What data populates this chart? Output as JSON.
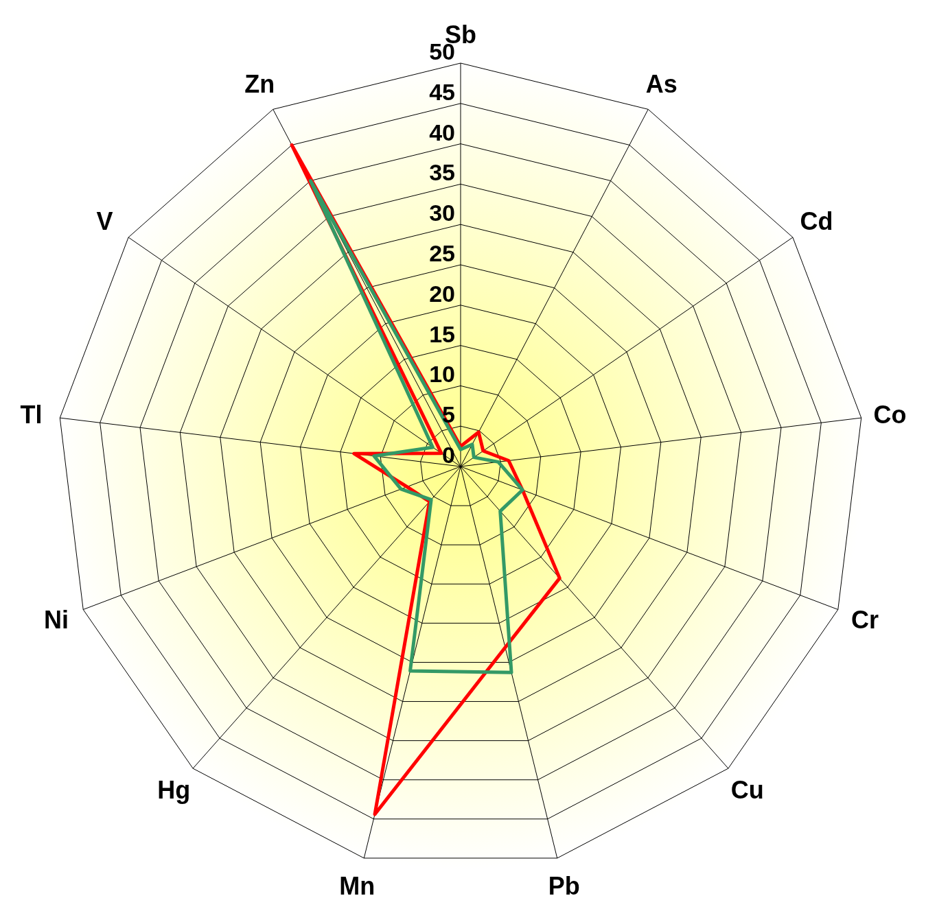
{
  "chart_data": {
    "type": "radar",
    "categories": [
      "Sb",
      "As",
      "Cd",
      "Co",
      "Cr",
      "Cu",
      "Pb",
      "Mn",
      "Hg",
      "Ni",
      "Tl",
      "V",
      "Zn"
    ],
    "series": [
      {
        "color": "#ff0000",
        "values": [
          2.5,
          4.8,
          3.4,
          6.0,
          8.2,
          18.5,
          23.1,
          44.4,
          5.8,
          7.1,
          13.3,
          2.9,
          45
        ]
      },
      {
        "color": "#339966",
        "values": [
          2.1,
          3.1,
          2.0,
          4.7,
          8.2,
          7.4,
          26.3,
          26.1,
          5.5,
          7.9,
          10.8,
          4.2,
          40
        ]
      }
    ],
    "ylim": [
      0,
      50
    ],
    "yticks": [
      0,
      5,
      10,
      15,
      20,
      25,
      30,
      35,
      40,
      45,
      50
    ],
    "grid": true,
    "marker": "none",
    "line_style": "solid"
  }
}
